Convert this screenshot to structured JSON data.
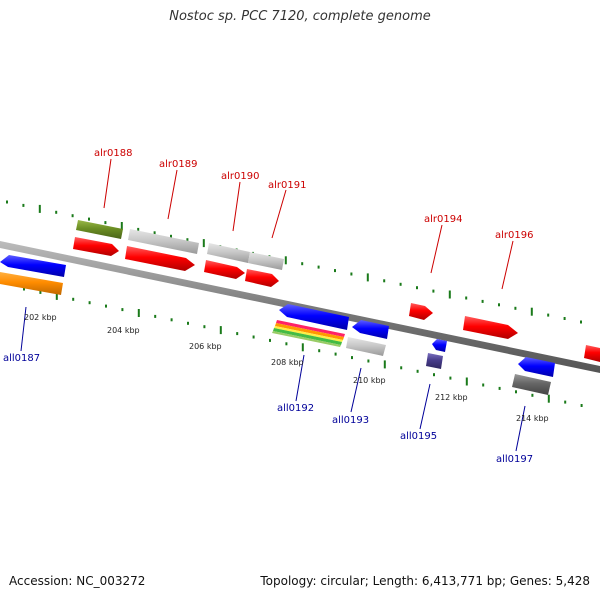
{
  "title": "Nostoc sp. PCC 7120, complete genome",
  "footer": {
    "accession": "Accession: NC_003272",
    "stats": "Topology: circular; Length: 6,413,771 bp; Genes: 5,428"
  },
  "colors": {
    "forward_label": "#cc0000",
    "reverse_label": "#000099",
    "backbone": "#888888",
    "tick_marks": "#1a7a1a"
  },
  "ticks": [
    "202 kbp",
    "204 kbp",
    "206 kbp",
    "208 kbp",
    "210 kbp",
    "212 kbp",
    "214 kbp"
  ],
  "forward_genes": [
    {
      "name": "alr0188",
      "color": "#6b8e23"
    },
    {
      "name": "alr0189",
      "color": "#c0c0c0"
    },
    {
      "name": "alr0190",
      "color": "#c0c0c0"
    },
    {
      "name": "alr0191",
      "color": "#ff0000"
    },
    {
      "name": "alr0194",
      "color": "#ff0000"
    },
    {
      "name": "alr0196",
      "color": "#ff0000"
    }
  ],
  "reverse_genes": [
    {
      "name": "all0187",
      "color": "#ff8c00"
    },
    {
      "name": "all0192",
      "color": "#0000ff"
    },
    {
      "name": "all0193",
      "color": "#c0c0c0"
    },
    {
      "name": "all0195",
      "color": "#483d8b"
    },
    {
      "name": "all0197",
      "color": "#666666"
    }
  ]
}
